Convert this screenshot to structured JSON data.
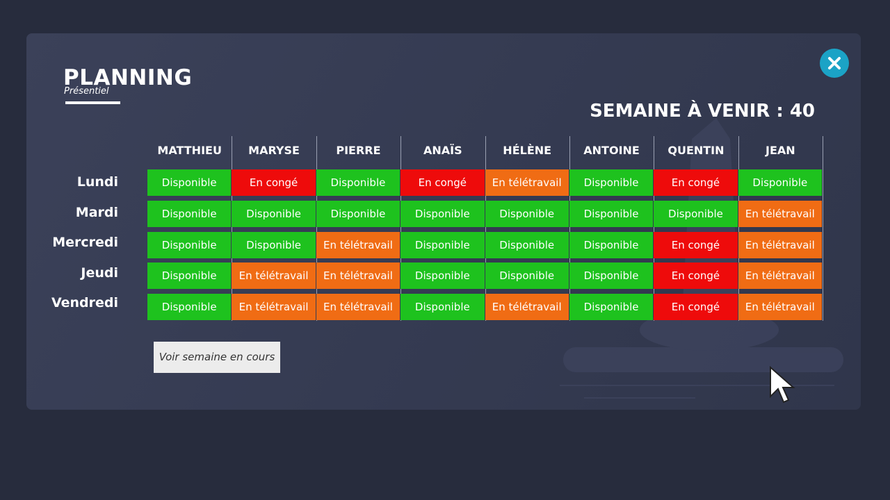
{
  "header": {
    "title": "PLANNING",
    "subtitle": "Présentiel",
    "week": "SEMAINE À VENIR : 40"
  },
  "table": {
    "columns": [
      "MATTHIEU",
      "MARYSE",
      "PIERRE",
      "ANAÏS",
      "HÉLÈNE",
      "ANTOINE",
      "QUENTIN",
      "JEAN"
    ],
    "days": [
      "Lundi",
      "Mardi",
      "Mercredi",
      "Jeudi",
      "Vendredi"
    ],
    "rows": [
      [
        "Disponible",
        "En congé",
        "Disponible",
        "En congé",
        "En télétravail",
        "Disponible",
        "En congé",
        "Disponible"
      ],
      [
        "Disponible",
        "Disponible",
        "Disponible",
        "Disponible",
        "Disponible",
        "Disponible",
        "Disponible",
        "En télétravail"
      ],
      [
        "Disponible",
        "Disponible",
        "En télétravail",
        "Disponible",
        "Disponible",
        "Disponible",
        "En congé",
        "En télétravail"
      ],
      [
        "Disponible",
        "En télétravail",
        "En télétravail",
        "Disponible",
        "Disponible",
        "Disponible",
        "En congé",
        "En télétravail"
      ],
      [
        "Disponible",
        "En télétravail",
        "En télétravail",
        "Disponible",
        "En télétravail",
        "Disponible",
        "En congé",
        "En télétravail"
      ]
    ],
    "status_colors": {
      "Disponible": "#1ec21e",
      "En congé": "#ee0b0b",
      "En télétravail": "#f06c14"
    }
  },
  "button": "Voir semaine en cours"
}
